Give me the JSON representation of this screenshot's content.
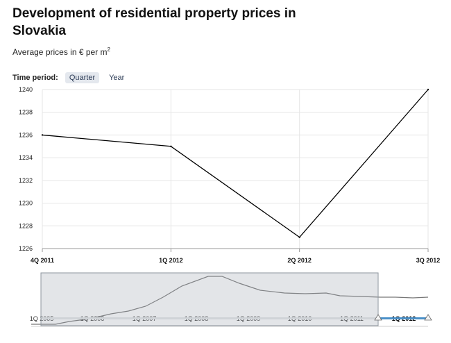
{
  "title": "Development of residential property prices in Slovakia",
  "subtitle": {
    "text": "Average prices in € per m",
    "sup": "2"
  },
  "time_period": {
    "label": "Time period:",
    "options": [
      "Quarter",
      "Year"
    ],
    "selected": "Quarter"
  },
  "colors": {
    "line": "#000000",
    "navigator_line": "#777777",
    "mask": "#9aa3ad",
    "scrollbar_active": "#4a90c8"
  },
  "chart_data": {
    "type": "line",
    "title": "Development of residential property prices in Slovakia",
    "subtitle": "Average prices in € per m2",
    "x": [
      "4Q 2011",
      "1Q 2012",
      "2Q 2012",
      "3Q 2012"
    ],
    "series": [
      {
        "values": [
          1236,
          1235,
          1227,
          1240
        ]
      }
    ],
    "ylim": [
      1226,
      1240
    ],
    "yticks": [
      1226,
      1228,
      1230,
      1232,
      1234,
      1236,
      1238,
      1240
    ],
    "grid": true,
    "legend": "none"
  },
  "navigator": {
    "labels": [
      "1Q 2005",
      "1Q 2006",
      "1Q 2007",
      "1Q 2008",
      "1Q 2009",
      "1Q 2010",
      "1Q 2011",
      "1Q 2012"
    ],
    "selected_range": [
      "4Q 2011",
      "3Q 2012"
    ]
  }
}
